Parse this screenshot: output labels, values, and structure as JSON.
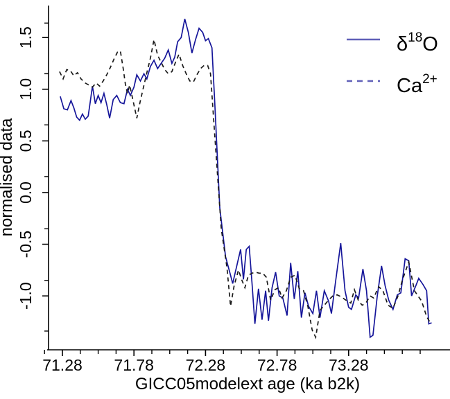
{
  "figure": {
    "background": "#ffffff",
    "axis_color": "#000000"
  },
  "axes": {
    "x": {
      "label": "GICC05modelext age (ka b2k)",
      "tick_labels": [
        "71.28",
        "71.78",
        "72.28",
        "72.78",
        "73.28"
      ],
      "major_ticks": [
        71.28,
        71.78,
        72.28,
        72.78,
        73.28
      ],
      "minor_ticks": [
        71.155,
        71.405,
        71.53,
        71.655,
        71.905,
        72.03,
        72.155,
        72.405,
        72.53,
        72.655,
        72.905,
        73.03,
        73.155,
        73.405,
        73.53,
        73.655,
        73.78
      ],
      "range": [
        71.18,
        73.99
      ]
    },
    "y": {
      "label": "normalised data",
      "tick_labels": [
        "1.5",
        "1.0",
        "0.5",
        "0.0",
        "-0.5",
        "-1.0"
      ],
      "major_ticks": [
        1.5,
        1.0,
        0.5,
        0.0,
        -0.5,
        -1.0
      ],
      "secondary_ticks": [
        1.64,
        1.15,
        0.655,
        0.155,
        -0.35,
        -0.85,
        -1.34
      ],
      "range": [
        -1.55,
        1.81
      ]
    }
  },
  "legend": {
    "position": "top-right",
    "text_color": "#10108c",
    "sample_color": "#6060b8",
    "items": [
      {
        "name": "d18O",
        "base": "δ",
        "sup": "18",
        "post": "O",
        "style": "solid"
      },
      {
        "name": "Ca2plus",
        "base": "Ca",
        "sup": "2+",
        "post": "",
        "style": "dashed"
      }
    ]
  },
  "chart_data": {
    "type": "line",
    "title": "",
    "xlabel": "GICC05modelext age (ka b2k)",
    "ylabel": "normalised data",
    "xlim": [
      71.18,
      73.99
    ],
    "ylim": [
      -1.55,
      1.81
    ],
    "grid": false,
    "legend_position": "top-right",
    "series": [
      {
        "name": "d18O",
        "label": "δ¹⁸O",
        "color": "#16169a",
        "style": "solid",
        "points": [
          [
            71.265,
            0.93
          ],
          [
            71.29,
            0.81
          ],
          [
            71.315,
            0.8
          ],
          [
            71.34,
            0.89
          ],
          [
            71.36,
            0.82
          ],
          [
            71.38,
            0.73
          ],
          [
            71.4,
            0.7
          ],
          [
            71.42,
            0.76
          ],
          [
            71.44,
            0.71
          ],
          [
            71.46,
            0.74
          ],
          [
            71.475,
            0.88
          ],
          [
            71.49,
            1.03
          ],
          [
            71.51,
            0.86
          ],
          [
            71.53,
            0.94
          ],
          [
            71.55,
            0.87
          ],
          [
            71.57,
            0.96
          ],
          [
            71.59,
            0.85
          ],
          [
            71.61,
            0.72
          ],
          [
            71.635,
            0.9
          ],
          [
            71.66,
            0.94
          ],
          [
            71.685,
            0.87
          ],
          [
            71.71,
            0.86
          ],
          [
            71.735,
            1.0
          ],
          [
            71.755,
            0.94
          ],
          [
            71.78,
            1.02
          ],
          [
            71.8,
            1.14
          ],
          [
            71.825,
            1.08
          ],
          [
            71.85,
            1.15
          ],
          [
            71.87,
            1.1
          ],
          [
            71.895,
            1.22
          ],
          [
            71.92,
            1.28
          ],
          [
            71.945,
            1.2
          ],
          [
            71.97,
            1.25
          ],
          [
            71.995,
            1.3
          ],
          [
            72.02,
            1.38
          ],
          [
            72.045,
            1.25
          ],
          [
            72.065,
            1.31
          ],
          [
            72.085,
            1.46
          ],
          [
            72.11,
            1.5
          ],
          [
            72.135,
            1.68
          ],
          [
            72.16,
            1.55
          ],
          [
            72.185,
            1.35
          ],
          [
            72.21,
            1.48
          ],
          [
            72.235,
            1.59
          ],
          [
            72.26,
            1.55
          ],
          [
            72.28,
            1.47
          ],
          [
            72.3,
            1.49
          ],
          [
            72.325,
            1.4
          ],
          [
            72.345,
            0.86
          ],
          [
            72.38,
            -0.15
          ],
          [
            72.42,
            -0.62
          ],
          [
            72.455,
            -0.8
          ],
          [
            72.47,
            -0.88
          ],
          [
            72.5,
            -0.7
          ],
          [
            72.525,
            -0.55
          ],
          [
            72.545,
            -0.84
          ],
          [
            72.565,
            -0.55
          ],
          [
            72.585,
            -0.52
          ],
          [
            72.605,
            -0.88
          ],
          [
            72.625,
            -1.27
          ],
          [
            72.65,
            -0.93
          ],
          [
            72.675,
            -1.23
          ],
          [
            72.7,
            -0.95
          ],
          [
            72.72,
            -1.24
          ],
          [
            72.745,
            -0.92
          ],
          [
            72.77,
            -0.77
          ],
          [
            72.795,
            -1.0
          ],
          [
            72.82,
            -1.02
          ],
          [
            72.85,
            -1.19
          ],
          [
            72.875,
            -0.68
          ],
          [
            72.9,
            -1.03
          ],
          [
            72.925,
            -0.76
          ],
          [
            72.95,
            -1.21
          ],
          [
            72.975,
            -0.97
          ],
          [
            73.0,
            -1.1
          ],
          [
            73.03,
            -1.17
          ],
          [
            73.055,
            -0.95
          ],
          [
            73.08,
            -1.21
          ],
          [
            73.11,
            -0.95
          ],
          [
            73.14,
            -1.05
          ],
          [
            73.16,
            -1.17
          ],
          [
            73.19,
            -0.85
          ],
          [
            73.225,
            -0.49
          ],
          [
            73.255,
            -0.95
          ],
          [
            73.28,
            -1.11
          ],
          [
            73.3,
            -1.13
          ],
          [
            73.33,
            -0.99
          ],
          [
            73.35,
            -1.02
          ],
          [
            73.38,
            -0.74
          ],
          [
            73.405,
            -0.95
          ],
          [
            73.43,
            -1.4
          ],
          [
            73.45,
            -1.38
          ],
          [
            73.48,
            -1.0
          ],
          [
            73.51,
            -0.71
          ],
          [
            73.535,
            -0.9
          ],
          [
            73.56,
            -1.04
          ],
          [
            73.59,
            -1.13
          ],
          [
            73.62,
            -0.99
          ],
          [
            73.645,
            -0.97
          ],
          [
            73.675,
            -0.64
          ],
          [
            73.7,
            -0.66
          ],
          [
            73.72,
            -1.0
          ],
          [
            73.75,
            -0.9
          ],
          [
            73.77,
            -0.83
          ],
          [
            73.8,
            -0.89
          ],
          [
            73.825,
            -0.95
          ],
          [
            73.84,
            -1.27
          ],
          [
            73.86,
            -1.26
          ]
        ]
      },
      {
        "name": "Ca2plus",
        "label": "Ca²⁺",
        "color": "#1b1b1b",
        "style": "dashed",
        "points": [
          [
            71.26,
            1.17
          ],
          [
            71.285,
            1.1
          ],
          [
            71.31,
            1.19
          ],
          [
            71.335,
            1.18
          ],
          [
            71.36,
            1.13
          ],
          [
            71.385,
            1.16
          ],
          [
            71.41,
            1.1
          ],
          [
            71.44,
            1.06
          ],
          [
            71.465,
            1.04
          ],
          [
            71.49,
            1.02
          ],
          [
            71.515,
            1.06
          ],
          [
            71.54,
            1.03
          ],
          [
            71.565,
            1.08
          ],
          [
            71.59,
            1.14
          ],
          [
            71.615,
            1.21
          ],
          [
            71.64,
            1.29
          ],
          [
            71.665,
            1.36
          ],
          [
            71.685,
            1.37
          ],
          [
            71.705,
            1.2
          ],
          [
            71.72,
            1.05
          ],
          [
            71.735,
            0.96
          ],
          [
            71.75,
            1.04
          ],
          [
            71.775,
            0.88
          ],
          [
            71.8,
            0.72
          ],
          [
            71.82,
            0.86
          ],
          [
            71.845,
            1.01
          ],
          [
            71.87,
            1.16
          ],
          [
            71.895,
            1.3
          ],
          [
            71.92,
            1.48
          ],
          [
            71.945,
            1.33
          ],
          [
            71.97,
            1.26
          ],
          [
            71.995,
            1.19
          ],
          [
            72.02,
            1.15
          ],
          [
            72.045,
            1.17
          ],
          [
            72.07,
            1.26
          ],
          [
            72.095,
            1.34
          ],
          [
            72.12,
            1.23
          ],
          [
            72.145,
            1.15
          ],
          [
            72.17,
            1.08
          ],
          [
            72.195,
            1.07
          ],
          [
            72.22,
            1.14
          ],
          [
            72.245,
            1.2
          ],
          [
            72.27,
            1.23
          ],
          [
            72.295,
            1.23
          ],
          [
            72.315,
            1.15
          ],
          [
            72.35,
            0.45
          ],
          [
            72.39,
            -0.35
          ],
          [
            72.43,
            -0.73
          ],
          [
            72.455,
            -1.1
          ],
          [
            72.48,
            -0.9
          ],
          [
            72.51,
            -0.75
          ],
          [
            72.535,
            -0.85
          ],
          [
            72.555,
            -0.92
          ],
          [
            72.58,
            -0.8
          ],
          [
            72.605,
            -0.78
          ],
          [
            72.63,
            -0.77
          ],
          [
            72.655,
            -0.78
          ],
          [
            72.68,
            -0.78
          ],
          [
            72.705,
            -0.82
          ],
          [
            72.735,
            -1.04
          ],
          [
            72.765,
            -0.94
          ],
          [
            72.79,
            -0.92
          ],
          [
            72.815,
            -1.02
          ],
          [
            72.845,
            -0.95
          ],
          [
            72.875,
            -0.82
          ],
          [
            72.905,
            -0.8
          ],
          [
            72.935,
            -0.93
          ],
          [
            72.965,
            -0.95
          ],
          [
            72.995,
            -1.1
          ],
          [
            73.025,
            -1.33
          ],
          [
            73.05,
            -1.4
          ],
          [
            73.08,
            -1.14
          ],
          [
            73.11,
            -1.09
          ],
          [
            73.14,
            -1.04
          ],
          [
            73.17,
            -1.0
          ],
          [
            73.2,
            -0.99
          ],
          [
            73.23,
            -1.01
          ],
          [
            73.26,
            -1.04
          ],
          [
            73.295,
            -1.07
          ],
          [
            73.32,
            -0.94
          ],
          [
            73.35,
            -1.05
          ],
          [
            73.375,
            -1.09
          ],
          [
            73.4,
            -1.07
          ],
          [
            73.43,
            -1.0
          ],
          [
            73.455,
            -1.02
          ],
          [
            73.49,
            -0.91
          ],
          [
            73.52,
            -0.95
          ],
          [
            73.555,
            -1.09
          ],
          [
            73.59,
            -1.12
          ],
          [
            73.625,
            -1.0
          ],
          [
            73.655,
            -0.85
          ],
          [
            73.7,
            -0.67
          ],
          [
            73.74,
            -0.95
          ],
          [
            73.765,
            -1.0
          ],
          [
            73.79,
            -1.05
          ],
          [
            73.825,
            -1.2
          ],
          [
            73.855,
            -1.27
          ]
        ]
      }
    ]
  }
}
